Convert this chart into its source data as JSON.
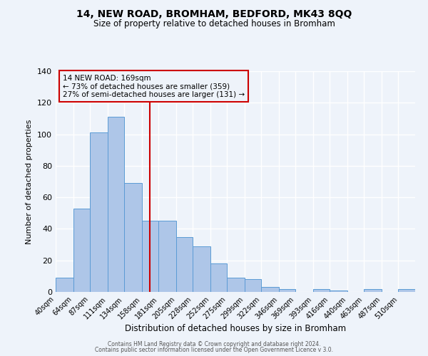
{
  "title": "14, NEW ROAD, BROMHAM, BEDFORD, MK43 8QQ",
  "subtitle": "Size of property relative to detached houses in Bromham",
  "xlabel": "Distribution of detached houses by size in Bromham",
  "ylabel": "Number of detached properties",
  "bar_labels": [
    "40sqm",
    "64sqm",
    "87sqm",
    "111sqm",
    "134sqm",
    "158sqm",
    "181sqm",
    "205sqm",
    "228sqm",
    "252sqm",
    "275sqm",
    "299sqm",
    "322sqm",
    "346sqm",
    "369sqm",
    "393sqm",
    "416sqm",
    "440sqm",
    "463sqm",
    "487sqm",
    "510sqm"
  ],
  "bar_values": [
    9,
    53,
    101,
    111,
    69,
    45,
    45,
    35,
    29,
    18,
    9,
    8,
    3,
    2,
    0,
    2,
    1,
    0,
    2,
    0,
    2
  ],
  "bar_color": "#aec6e8",
  "bar_edge_color": "#5b9bd5",
  "background_color": "#eef3fa",
  "grid_color": "#ffffff",
  "vline_color": "#cc0000",
  "annotation_title": "14 NEW ROAD: 169sqm",
  "annotation_line1": "← 73% of detached houses are smaller (359)",
  "annotation_line2": "27% of semi-detached houses are larger (131) →",
  "annotation_box_color": "#cc0000",
  "ylim": [
    0,
    140
  ],
  "yticks": [
    0,
    20,
    40,
    60,
    80,
    100,
    120,
    140
  ],
  "footer_line1": "Contains HM Land Registry data © Crown copyright and database right 2024.",
  "footer_line2": "Contains public sector information licensed under the Open Government Licence v 3.0.",
  "bin_edges": [
    40,
    64,
    87,
    111,
    134,
    158,
    181,
    205,
    228,
    252,
    275,
    299,
    322,
    346,
    369,
    393,
    416,
    440,
    463,
    487,
    510,
    533
  ],
  "vline_x": 169
}
